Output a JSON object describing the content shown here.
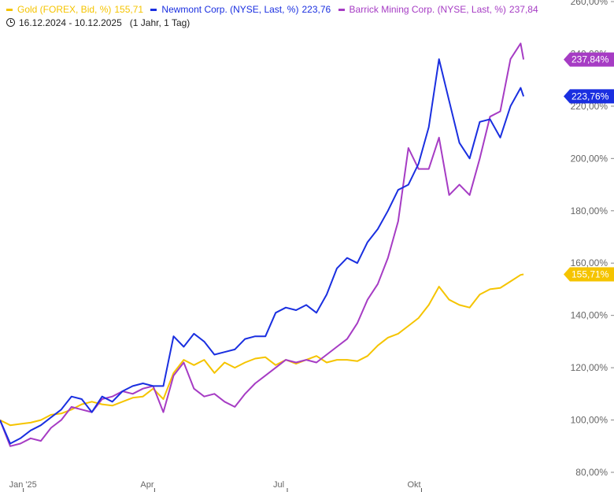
{
  "legend": [
    {
      "name": "Gold (FOREX, Bid, %)",
      "value": "155,71",
      "color": "#F5C400"
    },
    {
      "name": "Newmont Corp. (NYSE, Last, %)",
      "value": "223,76",
      "color": "#1A2FE0"
    },
    {
      "name": "Barrick Mining Corp. (NYSE, Last, %)",
      "value": "237,84",
      "color": "#A63CC4"
    }
  ],
  "date_range": "16.12.2024 - 10.12.2025",
  "period": "(1 Jahr, 1 Tag)",
  "chart_data": {
    "type": "line",
    "ylim": [
      80,
      260
    ],
    "y_ticks": [
      80,
      100,
      120,
      140,
      160,
      180,
      200,
      220,
      240,
      260
    ],
    "y_tick_labels": [
      "80,00%",
      "100,00%",
      "120,00%",
      "140,00%",
      "160,00%",
      "180,00%",
      "200,00%",
      "220,00%",
      "240,00%",
      "260,00%"
    ],
    "x_ticks": [
      {
        "label": "Jan '25",
        "date": "2025-01-01"
      },
      {
        "label": "Apr",
        "date": "2025-04-01"
      },
      {
        "label": "Jul",
        "date": "2025-07-01"
      },
      {
        "label": "Okt",
        "date": "2025-10-01"
      }
    ],
    "x_range": [
      "2024-12-16",
      "2026-02-10"
    ],
    "series": [
      {
        "name": "Gold (FOREX, Bid, %)",
        "color": "#F5C400",
        "last_label": "155,71%",
        "points": [
          [
            "2024-12-16",
            100
          ],
          [
            "2024-12-23",
            98
          ],
          [
            "2024-12-30",
            98.5
          ],
          [
            "2025-01-06",
            99
          ],
          [
            "2025-01-13",
            100
          ],
          [
            "2025-01-20",
            102
          ],
          [
            "2025-01-27",
            102.5
          ],
          [
            "2025-02-03",
            104
          ],
          [
            "2025-02-10",
            106
          ],
          [
            "2025-02-17",
            107
          ],
          [
            "2025-02-24",
            106
          ],
          [
            "2025-03-03",
            105.5
          ],
          [
            "2025-03-10",
            107
          ],
          [
            "2025-03-17",
            108.5
          ],
          [
            "2025-03-24",
            109
          ],
          [
            "2025-03-31",
            112
          ],
          [
            "2025-04-07",
            108
          ],
          [
            "2025-04-14",
            118
          ],
          [
            "2025-04-21",
            123
          ],
          [
            "2025-04-28",
            121
          ],
          [
            "2025-05-05",
            123
          ],
          [
            "2025-05-12",
            118
          ],
          [
            "2025-05-19",
            122
          ],
          [
            "2025-05-26",
            120
          ],
          [
            "2025-06-02",
            122
          ],
          [
            "2025-06-09",
            123.5
          ],
          [
            "2025-06-16",
            124
          ],
          [
            "2025-06-23",
            121
          ],
          [
            "2025-06-30",
            123
          ],
          [
            "2025-07-07",
            121.5
          ],
          [
            "2025-07-14",
            123
          ],
          [
            "2025-07-21",
            124.5
          ],
          [
            "2025-07-28",
            122
          ],
          [
            "2025-08-04",
            123
          ],
          [
            "2025-08-11",
            123
          ],
          [
            "2025-08-18",
            122.5
          ],
          [
            "2025-08-25",
            124.5
          ],
          [
            "2025-09-01",
            128.5
          ],
          [
            "2025-09-08",
            131.5
          ],
          [
            "2025-09-15",
            133
          ],
          [
            "2025-09-22",
            136
          ],
          [
            "2025-09-29",
            139
          ],
          [
            "2025-10-06",
            144
          ],
          [
            "2025-10-13",
            151
          ],
          [
            "2025-10-20",
            146
          ],
          [
            "2025-10-27",
            144
          ],
          [
            "2025-11-03",
            143
          ],
          [
            "2025-11-10",
            148
          ],
          [
            "2025-11-17",
            150
          ],
          [
            "2025-11-24",
            150.5
          ],
          [
            "2025-12-01",
            153
          ],
          [
            "2025-12-08",
            155.5
          ],
          [
            "2025-12-10",
            155.7
          ]
        ]
      },
      {
        "name": "Newmont Corp. (NYSE, Last, %)",
        "color": "#1A2FE0",
        "last_label": "223,76%",
        "points": [
          [
            "2024-12-16",
            100
          ],
          [
            "2024-12-23",
            91
          ],
          [
            "2024-12-30",
            93
          ],
          [
            "2025-01-06",
            96
          ],
          [
            "2025-01-13",
            98
          ],
          [
            "2025-01-20",
            101
          ],
          [
            "2025-01-27",
            104
          ],
          [
            "2025-02-03",
            109
          ],
          [
            "2025-02-10",
            108
          ],
          [
            "2025-02-17",
            103
          ],
          [
            "2025-02-24",
            109
          ],
          [
            "2025-03-03",
            107
          ],
          [
            "2025-03-10",
            111
          ],
          [
            "2025-03-17",
            113
          ],
          [
            "2025-03-24",
            114
          ],
          [
            "2025-03-31",
            113
          ],
          [
            "2025-04-07",
            113
          ],
          [
            "2025-04-14",
            132
          ],
          [
            "2025-04-21",
            128
          ],
          [
            "2025-04-28",
            133
          ],
          [
            "2025-05-05",
            130
          ],
          [
            "2025-05-12",
            125
          ],
          [
            "2025-05-19",
            126
          ],
          [
            "2025-05-26",
            127
          ],
          [
            "2025-06-02",
            131
          ],
          [
            "2025-06-09",
            132
          ],
          [
            "2025-06-16",
            132
          ],
          [
            "2025-06-23",
            141
          ],
          [
            "2025-06-30",
            143
          ],
          [
            "2025-07-07",
            142
          ],
          [
            "2025-07-14",
            144
          ],
          [
            "2025-07-21",
            141
          ],
          [
            "2025-07-28",
            148
          ],
          [
            "2025-08-04",
            158
          ],
          [
            "2025-08-11",
            162
          ],
          [
            "2025-08-18",
            160
          ],
          [
            "2025-08-25",
            168
          ],
          [
            "2025-09-01",
            173
          ],
          [
            "2025-09-08",
            180
          ],
          [
            "2025-09-15",
            188
          ],
          [
            "2025-09-22",
            190
          ],
          [
            "2025-09-29",
            198
          ],
          [
            "2025-10-06",
            212
          ],
          [
            "2025-10-13",
            238
          ],
          [
            "2025-10-20",
            222
          ],
          [
            "2025-10-27",
            206
          ],
          [
            "2025-11-03",
            200
          ],
          [
            "2025-11-10",
            214
          ],
          [
            "2025-11-17",
            215
          ],
          [
            "2025-11-24",
            208
          ],
          [
            "2025-12-01",
            220
          ],
          [
            "2025-12-08",
            227
          ],
          [
            "2025-12-10",
            223.76
          ]
        ]
      },
      {
        "name": "Barrick Mining Corp. (NYSE, Last, %)",
        "color": "#A63CC4",
        "last_label": "237,84%",
        "points": [
          [
            "2024-12-16",
            100
          ],
          [
            "2024-12-23",
            90
          ],
          [
            "2024-12-30",
            91
          ],
          [
            "2025-01-06",
            93
          ],
          [
            "2025-01-13",
            92
          ],
          [
            "2025-01-20",
            97
          ],
          [
            "2025-01-27",
            100
          ],
          [
            "2025-02-03",
            105
          ],
          [
            "2025-02-10",
            104
          ],
          [
            "2025-02-17",
            103
          ],
          [
            "2025-02-24",
            108
          ],
          [
            "2025-03-03",
            109
          ],
          [
            "2025-03-10",
            111
          ],
          [
            "2025-03-17",
            110
          ],
          [
            "2025-03-24",
            112
          ],
          [
            "2025-03-31",
            113
          ],
          [
            "2025-04-07",
            103
          ],
          [
            "2025-04-14",
            117
          ],
          [
            "2025-04-21",
            122
          ],
          [
            "2025-04-28",
            112
          ],
          [
            "2025-05-05",
            109
          ],
          [
            "2025-05-12",
            110
          ],
          [
            "2025-05-19",
            107
          ],
          [
            "2025-05-26",
            105
          ],
          [
            "2025-06-02",
            110
          ],
          [
            "2025-06-09",
            114
          ],
          [
            "2025-06-16",
            117
          ],
          [
            "2025-06-23",
            120
          ],
          [
            "2025-06-30",
            123
          ],
          [
            "2025-07-07",
            122
          ],
          [
            "2025-07-14",
            123
          ],
          [
            "2025-07-21",
            122
          ],
          [
            "2025-07-28",
            125
          ],
          [
            "2025-08-04",
            128
          ],
          [
            "2025-08-11",
            131
          ],
          [
            "2025-08-18",
            137
          ],
          [
            "2025-08-25",
            146
          ],
          [
            "2025-09-01",
            152
          ],
          [
            "2025-09-08",
            162
          ],
          [
            "2025-09-15",
            176
          ],
          [
            "2025-09-22",
            204
          ],
          [
            "2025-09-29",
            196
          ],
          [
            "2025-10-06",
            196
          ],
          [
            "2025-10-13",
            208
          ],
          [
            "2025-10-20",
            186
          ],
          [
            "2025-10-27",
            190
          ],
          [
            "2025-11-03",
            186
          ],
          [
            "2025-11-10",
            200
          ],
          [
            "2025-11-17",
            216
          ],
          [
            "2025-11-24",
            218
          ],
          [
            "2025-12-01",
            238
          ],
          [
            "2025-12-08",
            244
          ],
          [
            "2025-12-10",
            237.84
          ]
        ]
      }
    ]
  }
}
